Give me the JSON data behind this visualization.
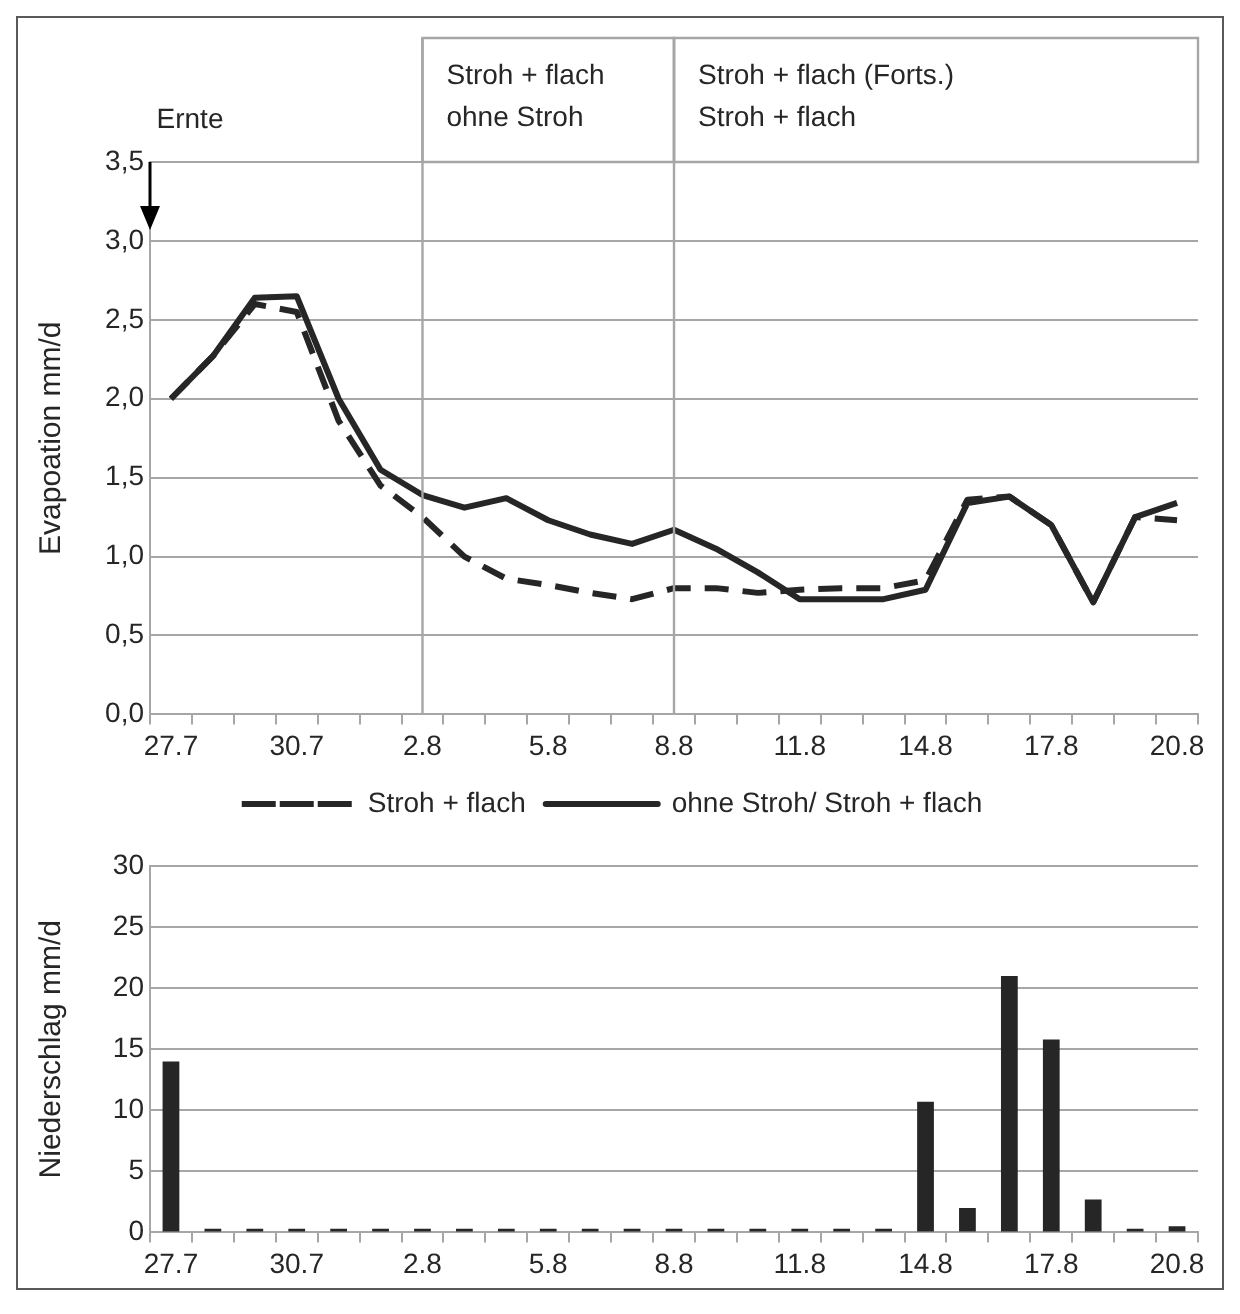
{
  "chart_data": [
    {
      "type": "line",
      "categories": [
        "27.7",
        null,
        null,
        "30.7",
        null,
        null,
        "2.8",
        null,
        null,
        "5.8",
        null,
        null,
        "8.8",
        null,
        null,
        "11.8",
        null,
        null,
        "14.8",
        null,
        null,
        "17.8",
        null,
        null,
        "20.8"
      ],
      "series": [
        {
          "name": "Stroh + flach",
          "color": "#262626",
          "line_style": "dashed",
          "values": [
            2.0,
            2.27,
            2.6,
            2.55,
            1.86,
            1.45,
            1.25,
            1.0,
            0.86,
            0.82,
            0.77,
            0.73,
            0.8,
            0.8,
            0.77,
            0.79,
            0.8,
            0.8,
            0.85,
            1.36,
            1.38,
            1.2,
            0.71,
            1.25,
            1.23
          ]
        },
        {
          "name": "ohne Stroh/ Stroh + flach",
          "color": "#262626",
          "line_style": "solid",
          "values": [
            2.0,
            2.27,
            2.64,
            2.65,
            2.0,
            1.55,
            1.39,
            1.31,
            1.37,
            1.23,
            1.14,
            1.08,
            1.17,
            1.05,
            0.9,
            0.73,
            0.73,
            0.73,
            0.79,
            1.34,
            1.38,
            1.2,
            0.71,
            1.25,
            1.34
          ]
        }
      ],
      "ylabel": "Evapoation mm/d",
      "ylim": [
        0,
        3.5
      ],
      "yticks": [
        {
          "value": 0,
          "label": "0,0"
        },
        {
          "value": 0.5,
          "label": "0,5"
        },
        {
          "value": 1,
          "label": "1,0"
        },
        {
          "value": 1.5,
          "label": "1,5"
        },
        {
          "value": 2,
          "label": "2,0"
        },
        {
          "value": 2.5,
          "label": "2,5"
        },
        {
          "value": 3,
          "label": "3,0"
        },
        {
          "value": 3.5,
          "label": "3,5"
        }
      ],
      "grid": "y",
      "legend": "bottom",
      "ref_lines": [
        {
          "axis": "x",
          "value": "2.8",
          "label": "Stroh + flach\nohne Stroh"
        },
        {
          "axis": "x",
          "value": "8.8",
          "label": "Stroh + flach (Forts.)\nStroh + flach"
        }
      ],
      "annotations": [
        "Ernte"
      ]
    },
    {
      "type": "bar",
      "categories": [
        "27.7",
        null,
        null,
        "30.7",
        null,
        null,
        "2.8",
        null,
        null,
        "5.8",
        null,
        null,
        "8.8",
        null,
        null,
        "11.8",
        null,
        null,
        "14.8",
        null,
        null,
        "17.8",
        null,
        null,
        "20.8"
      ],
      "values": [
        14,
        0.3,
        0.3,
        0.3,
        0.3,
        0.3,
        0.3,
        0.3,
        0.3,
        0.3,
        0.3,
        0.3,
        0.3,
        0.3,
        0.3,
        0.3,
        0.3,
        0.3,
        10.7,
        2,
        21,
        15.8,
        2.7,
        0.3,
        0.5
      ],
      "color": "#262626",
      "ylabel": "Niederschlag mm/d",
      "ylim": [
        0,
        30
      ],
      "yticks": [
        0,
        5,
        10,
        15,
        20,
        25,
        30
      ],
      "grid": "y"
    }
  ]
}
